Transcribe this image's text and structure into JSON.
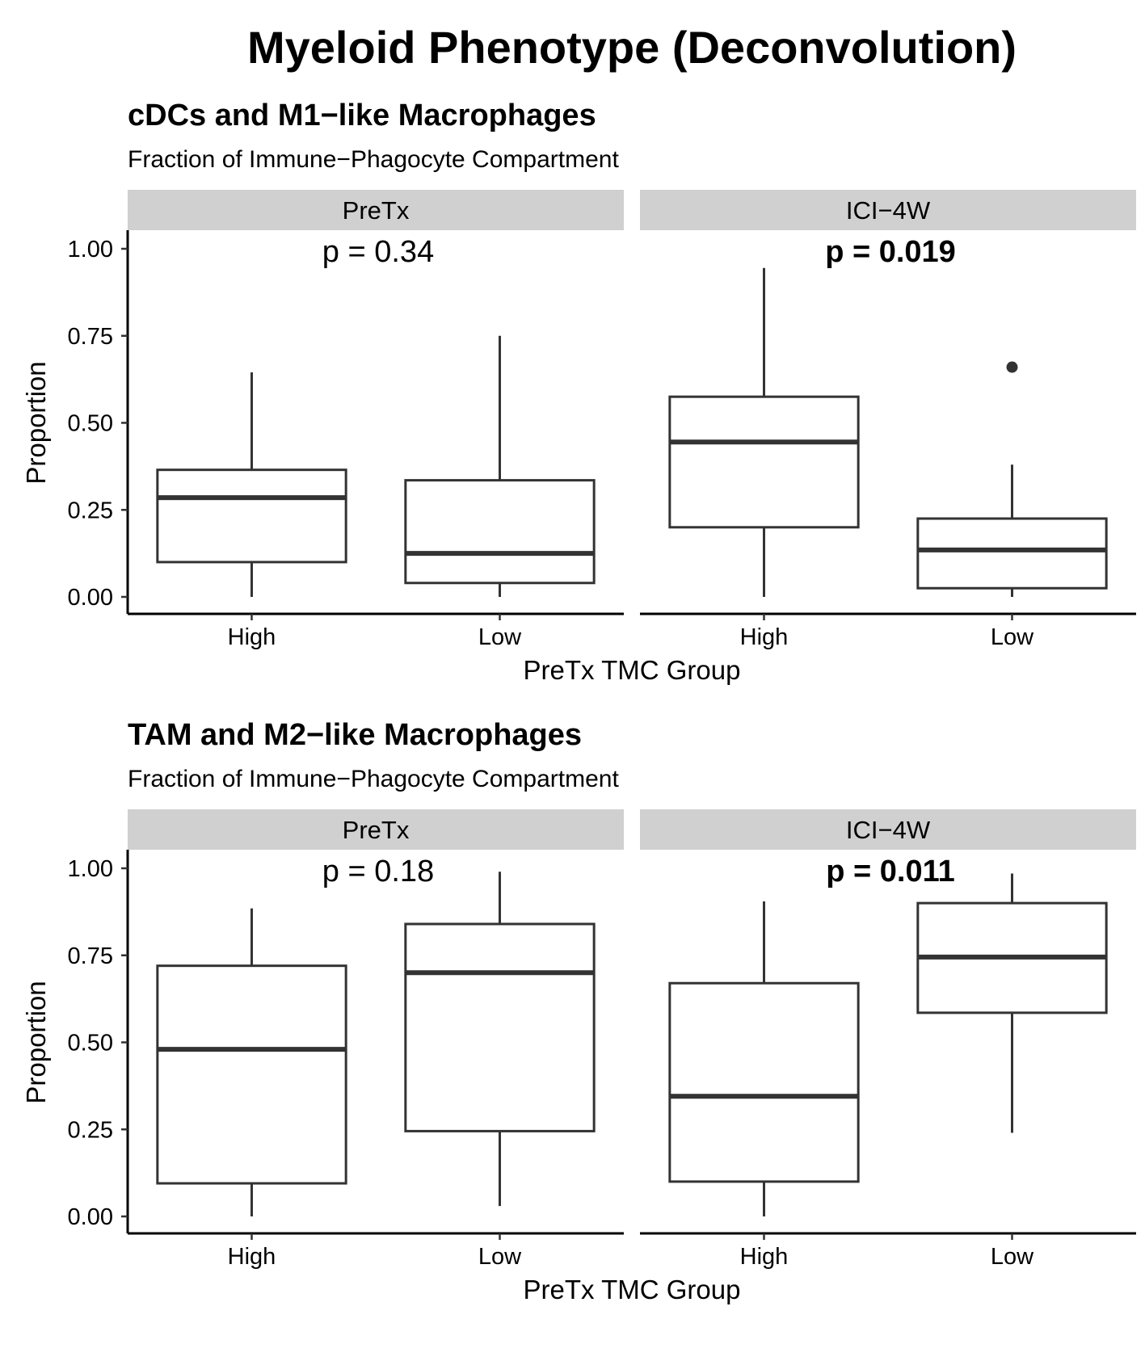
{
  "title": "Myeloid Phenotype (Deconvolution)",
  "chart_data": [
    {
      "type": "box",
      "title": "cDCs and M1−like Macrophages",
      "subtitle": "Fraction of Immune−Phagocyte Compartment",
      "xlabel": "PreTx TMC Group",
      "ylabel": "Proportion",
      "ylim": [
        0,
        1
      ],
      "yticks": [
        "0.00",
        "0.25",
        "0.50",
        "0.75",
        "1.00"
      ],
      "categories": [
        "High",
        "Low"
      ],
      "facets": [
        {
          "name": "PreTx",
          "pvalue": "p = 0.34",
          "significant": false,
          "boxes": [
            {
              "group": "High",
              "min": 0.0,
              "q1": 0.1,
              "median": 0.285,
              "q3": 0.365,
              "max": 0.645,
              "outliers": []
            },
            {
              "group": "Low",
              "min": 0.0,
              "q1": 0.04,
              "median": 0.125,
              "q3": 0.335,
              "max": 0.75,
              "outliers": []
            }
          ]
        },
        {
          "name": "ICI−4W",
          "pvalue": "p = 0.019",
          "significant": true,
          "boxes": [
            {
              "group": "High",
              "min": 0.0,
              "q1": 0.2,
              "median": 0.445,
              "q3": 0.575,
              "max": 0.945,
              "outliers": []
            },
            {
              "group": "Low",
              "min": 0.0,
              "q1": 0.025,
              "median": 0.135,
              "q3": 0.225,
              "max": 0.38,
              "outliers": [
                0.66
              ]
            }
          ]
        }
      ]
    },
    {
      "type": "box",
      "title": "TAM and M2−like Macrophages",
      "subtitle": "Fraction of Immune−Phagocyte Compartment",
      "xlabel": "PreTx TMC Group",
      "ylabel": "Proportion",
      "ylim": [
        0,
        1
      ],
      "yticks": [
        "0.00",
        "0.25",
        "0.50",
        "0.75",
        "1.00"
      ],
      "categories": [
        "High",
        "Low"
      ],
      "facets": [
        {
          "name": "PreTx",
          "pvalue": "p = 0.18",
          "significant": false,
          "boxes": [
            {
              "group": "High",
              "min": 0.0,
              "q1": 0.095,
              "median": 0.48,
              "q3": 0.72,
              "max": 0.885,
              "outliers": []
            },
            {
              "group": "Low",
              "min": 0.03,
              "q1": 0.245,
              "median": 0.7,
              "q3": 0.84,
              "max": 0.99,
              "outliers": []
            }
          ]
        },
        {
          "name": "ICI−4W",
          "pvalue": "p = 0.011",
          "significant": true,
          "boxes": [
            {
              "group": "High",
              "min": 0.0,
              "q1": 0.1,
              "median": 0.345,
              "q3": 0.67,
              "max": 0.905,
              "outliers": []
            },
            {
              "group": "Low",
              "min": 0.24,
              "q1": 0.585,
              "median": 0.745,
              "q3": 0.9,
              "max": 0.985,
              "outliers": []
            }
          ]
        }
      ]
    }
  ]
}
